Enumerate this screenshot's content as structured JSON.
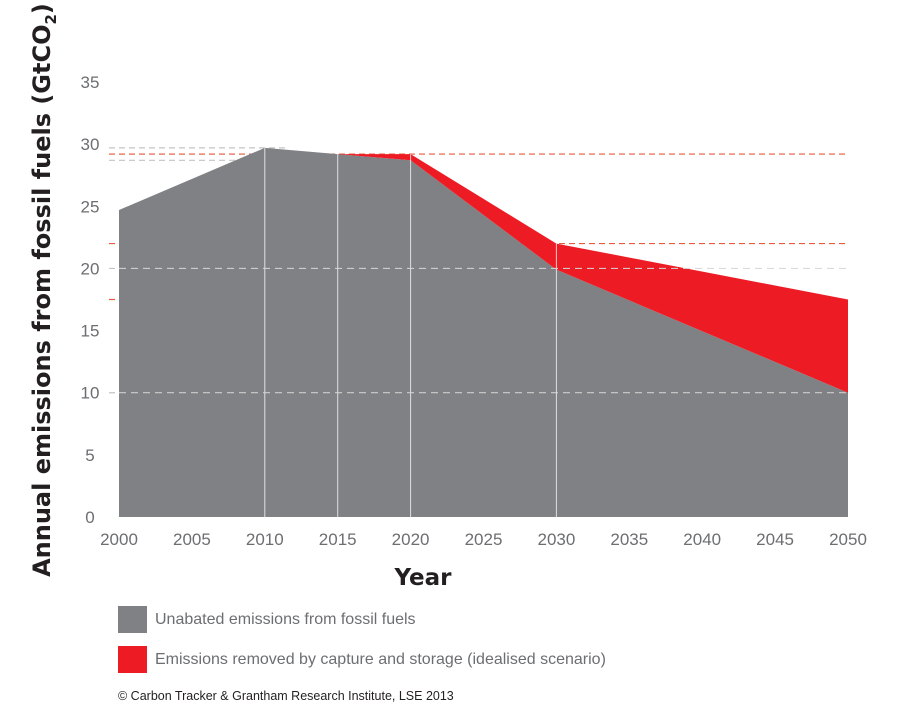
{
  "chart_data": {
    "type": "area",
    "title": "",
    "xlabel": "Year",
    "ylabel": "Annual emissions from fossil fuels (GtCO",
    "ylabel_subscript": "2",
    "ylabel_close": ")",
    "x_ticks": [
      "2000",
      "2005",
      "2010",
      "2015",
      "2020",
      "2025",
      "2030",
      "2035",
      "2040",
      "2045",
      "2050"
    ],
    "y_ticks": [
      "0",
      "5",
      "10",
      "15",
      "20",
      "25",
      "30",
      "35"
    ],
    "xlim": [
      2000,
      2050
    ],
    "ylim": [
      0,
      35
    ],
    "x": [
      2000,
      2010,
      2015,
      2020,
      2030,
      2050
    ],
    "series": [
      {
        "name": "Unabated emissions from fossil fuels",
        "color": "#808184",
        "values": [
          24.7,
          29.7,
          29.2,
          28.7,
          19.9,
          10.0
        ]
      },
      {
        "name": "Emissions removed by capture and storage (idealised scenario)",
        "color": "#ed1c24",
        "lower": [
          24.7,
          29.7,
          29.2,
          28.7,
          19.9,
          10.0
        ],
        "upper": [
          24.7,
          29.7,
          29.2,
          29.2,
          22.0,
          17.5
        ]
      }
    ],
    "reference_lines": {
      "gray": [
        29.7,
        29.2,
        28.7,
        20.0,
        10.0
      ],
      "red": [
        29.2,
        22.0,
        17.5
      ]
    },
    "vertical_guides": [
      2010,
      2015,
      2020,
      2030
    ],
    "colors": {
      "grid": "#c4c4c4",
      "tick_text": "#6d6e71",
      "title_text": "#231f20",
      "red_dash": "#e85a3c"
    }
  },
  "legend": [
    {
      "label": "Unabated emissions from fossil fuels",
      "color": "#808184"
    },
    {
      "label": "Emissions removed by capture and storage (idealised scenario)",
      "color": "#ed1c24"
    }
  ],
  "credit": "© Carbon Tracker & Grantham Research Institute, LSE 2013"
}
